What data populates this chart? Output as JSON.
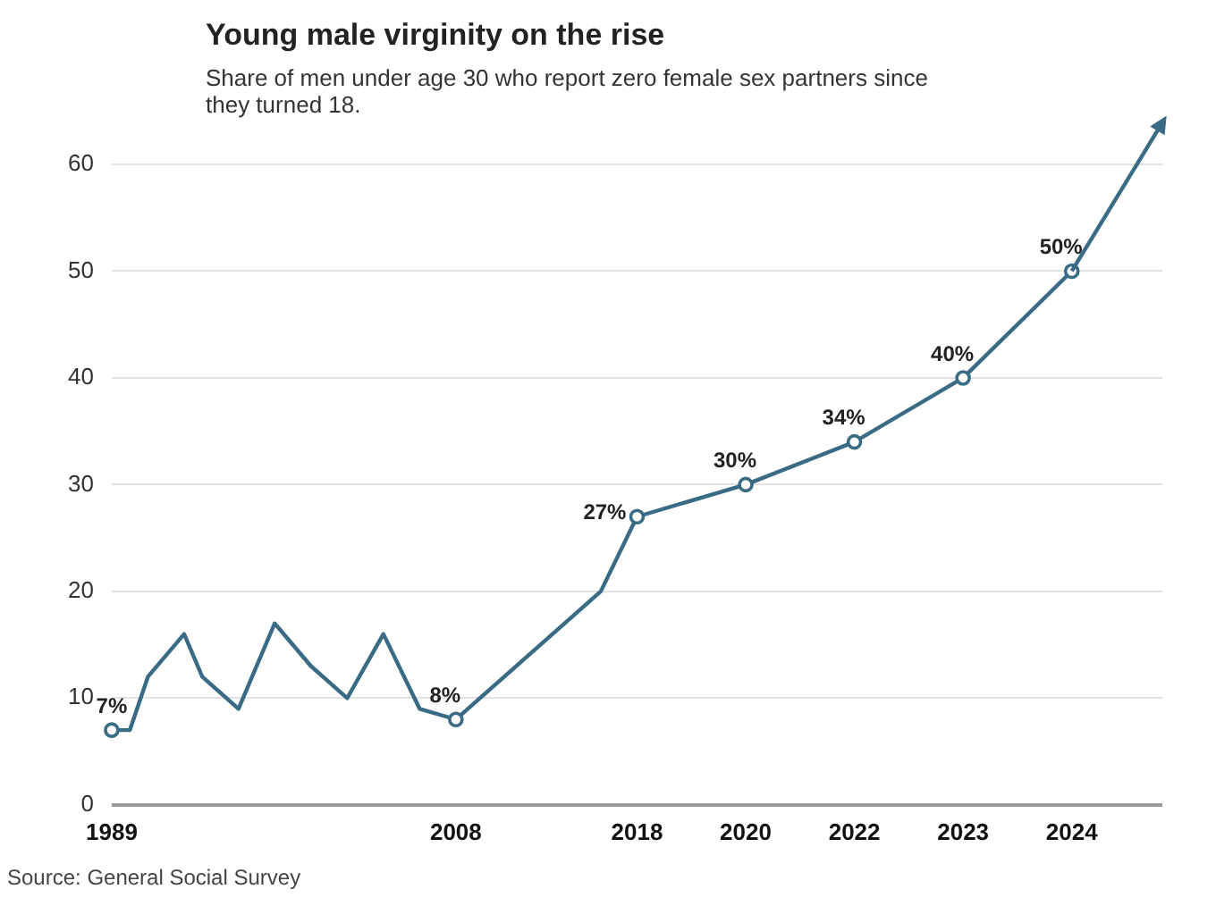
{
  "chart_data": {
    "type": "line",
    "title": "Young male virginity on the rise",
    "subtitle": "Share of men under age 30 who report zero female sex partners since they turned 18.",
    "annotations": [
      "Source: General Social Survey"
    ],
    "categories": [
      "1989",
      null,
      null,
      null,
      null,
      null,
      null,
      null,
      null,
      null,
      null,
      null,
      null,
      null,
      null,
      null,
      null,
      null,
      null,
      "2008",
      null,
      null,
      null,
      null,
      null,
      null,
      null,
      null,
      null,
      "2018",
      null,
      null,
      null,
      null,
      null,
      "2020",
      null,
      null,
      null,
      null,
      null,
      "2022",
      null,
      null,
      null,
      null,
      null,
      "2023",
      null,
      null,
      null,
      null,
      null,
      "2024",
      null,
      null,
      null,
      null,
      null
    ],
    "series": [
      {
        "color": "#3a6b85",
        "values": [
          7,
          7,
          12,
          null,
          16,
          12,
          null,
          9,
          null,
          17,
          null,
          13,
          null,
          10,
          null,
          16,
          null,
          9,
          null,
          8,
          null,
          null,
          null,
          null,
          null,
          null,
          null,
          20,
          null,
          27,
          null,
          null,
          null,
          null,
          null,
          30,
          null,
          null,
          null,
          null,
          null,
          34,
          null,
          null,
          null,
          null,
          null,
          40,
          null,
          null,
          null,
          null,
          null,
          50,
          null,
          null,
          null,
          null,
          null
        ],
        "value_labels": [
          "7%",
          null,
          null,
          null,
          null,
          null,
          null,
          null,
          null,
          null,
          null,
          null,
          null,
          null,
          null,
          null,
          null,
          null,
          null,
          "8%",
          null,
          null,
          null,
          null,
          null,
          null,
          null,
          null,
          null,
          "27%",
          null,
          null,
          null,
          null,
          null,
          "30%",
          null,
          null,
          null,
          null,
          null,
          "34%",
          null,
          null,
          null,
          null,
          null,
          "40%",
          null,
          null,
          null,
          null,
          null,
          "50%",
          null,
          null,
          null,
          null,
          null
        ]
      }
    ],
    "ylim": [
      0,
      60
    ],
    "yticks": [
      0,
      10,
      20,
      30,
      40,
      50,
      60
    ],
    "grid": "y",
    "legend": false,
    "line_style": "solid"
  }
}
